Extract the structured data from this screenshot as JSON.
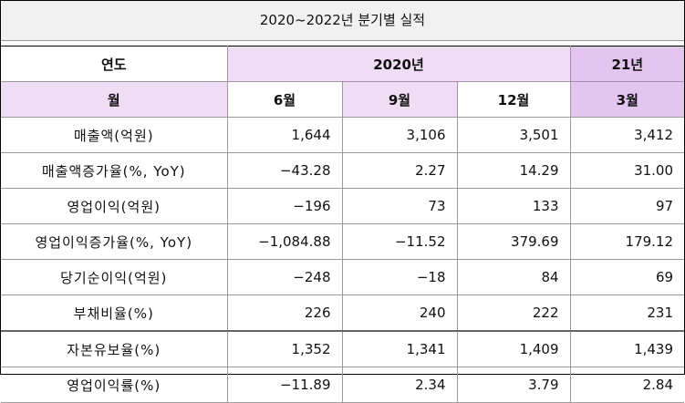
{
  "title": "2020~2022년 분기별 실적",
  "header": {
    "year_label": "연도",
    "year_2020": "2020년",
    "year_21": "21년",
    "month_label": "월",
    "months": [
      "6월",
      "9월",
      "12월",
      "3월"
    ]
  },
  "rows": [
    {
      "label": "매출액(억원)",
      "values": [
        "1,644",
        "3,106",
        "3,501",
        "3,412"
      ],
      "tones": [
        "",
        "",
        "",
        ""
      ]
    },
    {
      "label": "매출액증가율(%, YoY)",
      "values": [
        "−43.28",
        "2.27",
        "14.29",
        "31.00"
      ],
      "tones": [
        "neg",
        "pos",
        "pos",
        "pos"
      ]
    },
    {
      "label": "영업이익(억원)",
      "values": [
        "−196",
        "73",
        "133",
        "97"
      ],
      "tones": [
        "",
        "",
        "",
        ""
      ]
    },
    {
      "label": "영업이익증가율(%, YoY)",
      "values": [
        "−1,084.88",
        "−11.52",
        "379.69",
        "179.12"
      ],
      "tones": [
        "neg",
        "neg",
        "pos",
        "pos"
      ]
    },
    {
      "label": "당기순이익(억원)",
      "values": [
        "−248",
        "−18",
        "84",
        "69"
      ],
      "tones": [
        "",
        "",
        "",
        ""
      ]
    },
    {
      "label": "부채비율(%)",
      "values": [
        "226",
        "240",
        "222",
        "231"
      ],
      "tones": [
        "",
        "",
        "",
        ""
      ]
    },
    {
      "label": "자본유보율(%)",
      "values": [
        "1,352",
        "1,341",
        "1,409",
        "1,439"
      ],
      "tones": [
        "",
        "",
        "",
        ""
      ]
    },
    {
      "label": "영업이익률(%)",
      "values": [
        "−11.89",
        "2.34",
        "3.79",
        "2.84"
      ],
      "tones": [
        "neg",
        "pos",
        "pos",
        "pos"
      ]
    }
  ],
  "colors": {
    "negative": "#4f86c6",
    "positive": "#e23b3b",
    "header_lavender": "#f0dcf5",
    "header_lavender_strong": "#e3c5ef"
  }
}
